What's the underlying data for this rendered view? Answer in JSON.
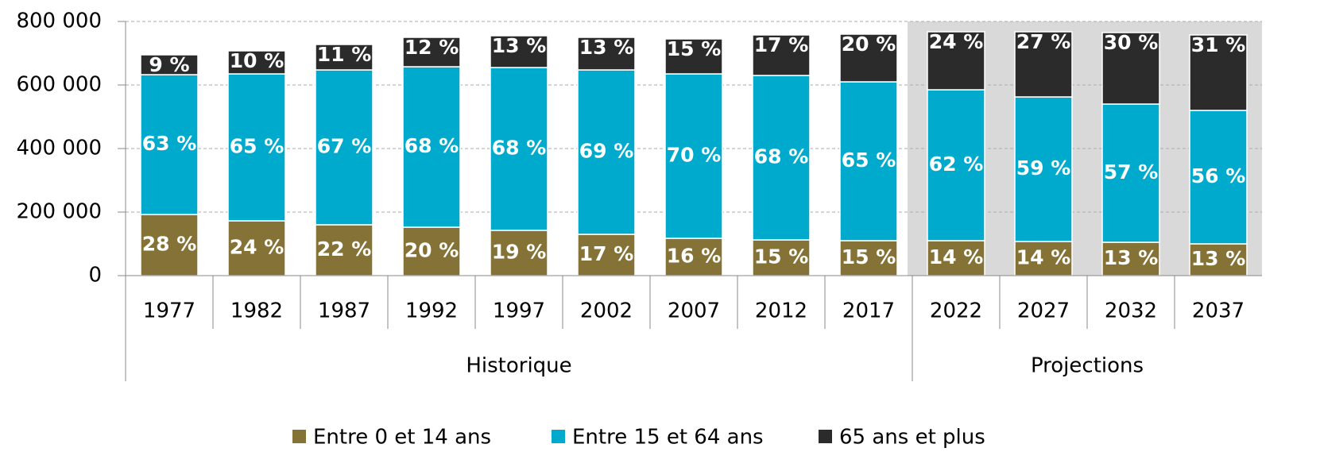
{
  "chart_data": {
    "type": "stacked-bar",
    "groups": [
      {
        "name": "Historique",
        "categories": [
          "1977",
          "1982",
          "1987",
          "1992",
          "1997",
          "2002",
          "2007",
          "2012",
          "2017"
        ]
      },
      {
        "name": "Projections",
        "categories": [
          "2022",
          "2027",
          "2032",
          "2037"
        ],
        "shaded": true
      }
    ],
    "series": [
      {
        "name": "Entre 0 et 14 ans",
        "color": "#857236",
        "values": [
          192500,
          172500,
          160000,
          152500,
          142500,
          130000,
          117500,
          112500,
          110000,
          110000,
          107500,
          105000,
          100000
        ],
        "value_labels": [
          "28 %",
          "24 %",
          "22 %",
          "20 %",
          "19 %",
          "17 %",
          "16 %",
          "15 %",
          "15 %",
          "14 %",
          "14 %",
          "13 %",
          "13 %"
        ]
      },
      {
        "name": "Entre 15 et 64 ans",
        "color": "#00aacc",
        "values": [
          440000,
          462500,
          487500,
          505000,
          512500,
          517500,
          517500,
          517500,
          500000,
          475000,
          455000,
          435000,
          420000
        ],
        "value_labels": [
          "63 %",
          "65 %",
          "67 %",
          "68 %",
          "68 %",
          "69 %",
          "70 %",
          "68 %",
          "65 %",
          "62 %",
          "59 %",
          "57 %",
          "56 %"
        ]
      },
      {
        "name": "65 ans et plus",
        "color": "#2b2b2b",
        "values": [
          62500,
          72500,
          80000,
          92500,
          100000,
          102500,
          110000,
          127500,
          150000,
          182500,
          205000,
          225000,
          237500
        ],
        "value_labels": [
          "9 %",
          "10 %",
          "11 %",
          "12 %",
          "13 %",
          "13 %",
          "15 %",
          "17 %",
          "20 %",
          "24 %",
          "27 %",
          "30 %",
          "31 %"
        ]
      }
    ],
    "ylim": [
      0,
      800000
    ],
    "yticks": [
      0,
      {
        "value": 200000,
        "label": "200 000"
      },
      {
        "value": 400000,
        "label": "400 000"
      },
      {
        "value": 600000,
        "label": "600 000"
      },
      {
        "value": 800000,
        "label": "800 000"
      }
    ],
    "grid": true,
    "legend": "bottom"
  }
}
